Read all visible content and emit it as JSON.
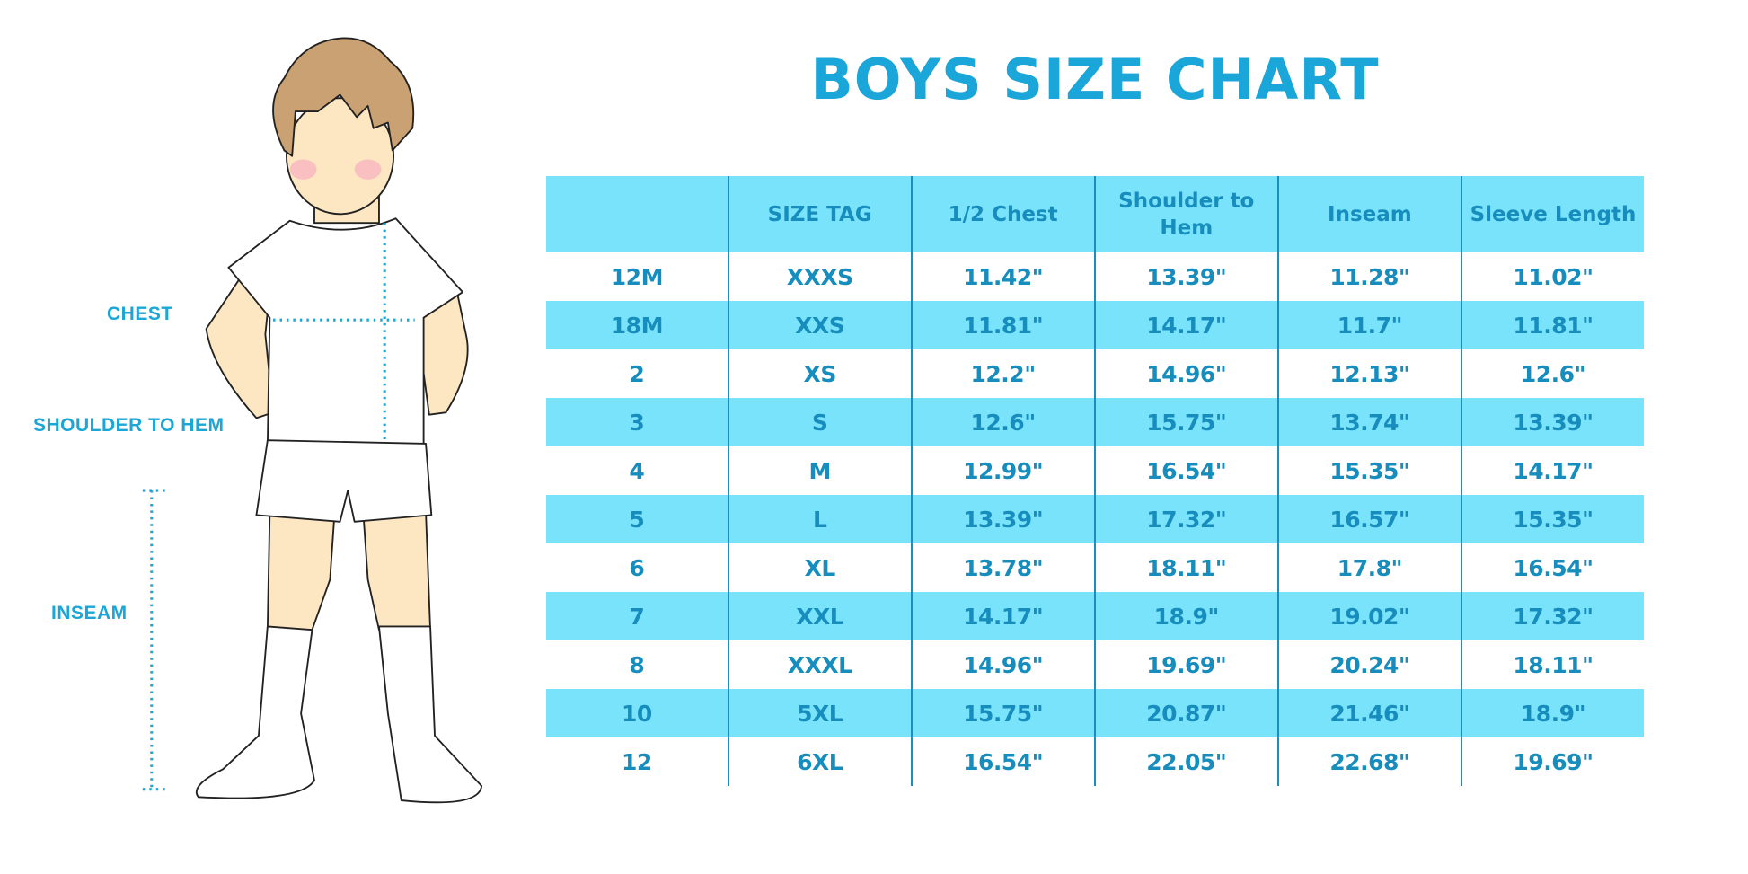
{
  "title": "BOYS SIZE CHART",
  "measure_labels": {
    "chest": "CHEST",
    "shoulder_to_hem": "SHOULDER TO HEM",
    "inseam": "INSEAM"
  },
  "colors": {
    "accent": "#1aa6d9",
    "stripe": "#79e3fc",
    "text": "#178dbd"
  },
  "table": {
    "headers": [
      "",
      "SIZE TAG",
      "1/2 Chest",
      "Shoulder to Hem",
      "Inseam",
      "Sleeve Length"
    ],
    "rows": [
      [
        "12M",
        "XXXS",
        "11.42\"",
        "13.39\"",
        "11.28\"",
        "11.02\""
      ],
      [
        "18M",
        "XXS",
        "11.81\"",
        "14.17\"",
        "11.7\"",
        "11.81\""
      ],
      [
        "2",
        "XS",
        "12.2\"",
        "14.96\"",
        "12.13\"",
        "12.6\""
      ],
      [
        "3",
        "S",
        "12.6\"",
        "15.75\"",
        "13.74\"",
        "13.39\""
      ],
      [
        "4",
        "M",
        "12.99\"",
        "16.54\"",
        "15.35\"",
        "14.17\""
      ],
      [
        "5",
        "L",
        "13.39\"",
        "17.32\"",
        "16.57\"",
        "15.35\""
      ],
      [
        "6",
        "XL",
        "13.78\"",
        "18.11\"",
        "17.8\"",
        "16.54\""
      ],
      [
        "7",
        "XXL",
        "14.17\"",
        "18.9\"",
        "19.02\"",
        "17.32\""
      ],
      [
        "8",
        "XXXL",
        "14.96\"",
        "19.69\"",
        "20.24\"",
        "18.11\""
      ],
      [
        "10",
        "5XL",
        "15.75\"",
        "20.87\"",
        "21.46\"",
        "18.9\""
      ],
      [
        "12",
        "6XL",
        "16.54\"",
        "22.05\"",
        "22.68\"",
        "19.69\""
      ]
    ]
  }
}
